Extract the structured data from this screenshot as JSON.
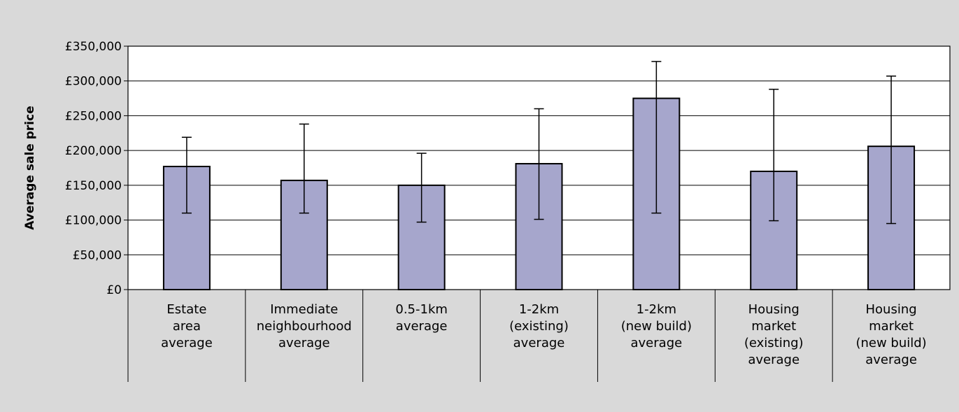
{
  "chart_data": {
    "type": "bar",
    "title": "",
    "xlabel": "",
    "ylabel": "Average sale price",
    "ylim": [
      0,
      350000
    ],
    "y_ticks": [
      {
        "value": 0,
        "label": "£0"
      },
      {
        "value": 50000,
        "label": "£50,000"
      },
      {
        "value": 100000,
        "label": "£100,000"
      },
      {
        "value": 150000,
        "label": "£150,000"
      },
      {
        "value": 200000,
        "label": "£200,000"
      },
      {
        "value": 250000,
        "label": "£250,000"
      },
      {
        "value": 300000,
        "label": "£300,000"
      },
      {
        "value": 350000,
        "label": "£350,000"
      }
    ],
    "categories": [
      "Estate area average",
      "Immediate neighbourhood average",
      "0.5-1km average",
      "1-2km (existing) average",
      "1-2km (new build) average",
      "Housing market (existing) average",
      "Housing market (new build) average"
    ],
    "category_label_lines": [
      [
        "Estate",
        "area",
        "average"
      ],
      [
        "Immediate",
        "neighbourhood",
        "average"
      ],
      [
        "0.5-1km",
        "average"
      ],
      [
        "1-2km",
        "(existing)",
        "average"
      ],
      [
        "1-2km",
        "(new build)",
        "average"
      ],
      [
        "Housing",
        "market",
        "(existing)",
        "average"
      ],
      [
        "Housing",
        "market",
        "(new build)",
        "average"
      ]
    ],
    "values": [
      177000,
      157000,
      150000,
      181000,
      275000,
      170000,
      206000
    ],
    "error_low": [
      110000,
      110000,
      97000,
      101000,
      110000,
      99000,
      95000
    ],
    "error_high": [
      219000,
      238000,
      196000,
      260000,
      328000,
      288000,
      307000
    ],
    "bar_color": "#a6a6cc",
    "background_color": "#d9d9d9",
    "plot_color": "#ffffff",
    "grid": true,
    "legend": "none"
  }
}
